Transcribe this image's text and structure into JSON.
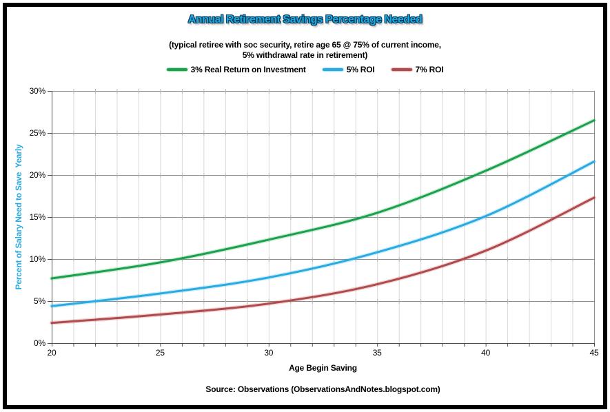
{
  "window": {
    "background": "#ffffff",
    "frame_border_color": "#000000"
  },
  "header": {
    "title": "Annual Retirement Savings Percentage Needed",
    "title_color": "#1ba7e0",
    "title_outline_color": "#0d3a55",
    "subtitle_line1": "(typical retiree with soc security, retire age 65 @ 75% of current income,",
    "subtitle_line2": "5% withdrawal rate in retirement)"
  },
  "footer": {
    "source": "Source: Observations (ObservationsAndNotes.blogspot.com)"
  },
  "chart_data": {
    "type": "line",
    "title": "Annual Retirement Savings Percentage Needed",
    "xlabel": "Age Begin Saving",
    "ylabel": "Percent of Salary Need to Save  Yearly",
    "ylabel_color": "#29abe2",
    "x": [
      20,
      25,
      30,
      35,
      40,
      45
    ],
    "series": [
      {
        "name": "3% Real Return on Investment",
        "color": "#1aa14c",
        "values": [
          7.7,
          9.6,
          12.3,
          15.5,
          20.5,
          26.5
        ]
      },
      {
        "name": "5% ROI",
        "color": "#29abe2",
        "values": [
          4.4,
          5.9,
          7.8,
          10.8,
          15.1,
          21.6
        ]
      },
      {
        "name": "7% ROI",
        "color": "#b04a4c",
        "values": [
          2.4,
          3.4,
          4.7,
          7.0,
          11.0,
          17.3
        ]
      }
    ],
    "xlim": [
      20,
      45
    ],
    "ylim": [
      0,
      30
    ],
    "x_minor_step": 1,
    "x_tick_labels": [
      "20",
      "25",
      "30",
      "35",
      "40",
      "45"
    ],
    "y_tick_values": [
      0,
      5,
      10,
      15,
      20,
      25,
      30
    ],
    "y_tick_labels": [
      "0%",
      "5%",
      "10%",
      "15%",
      "20%",
      "25%",
      "30%"
    ],
    "legend_position": "top",
    "grid": {
      "h_color": "#8c8c8c",
      "v_color": "#d9d9d9",
      "cross_tick_color": "#b8b8b8",
      "axis_color": "#4d4d4d"
    }
  }
}
